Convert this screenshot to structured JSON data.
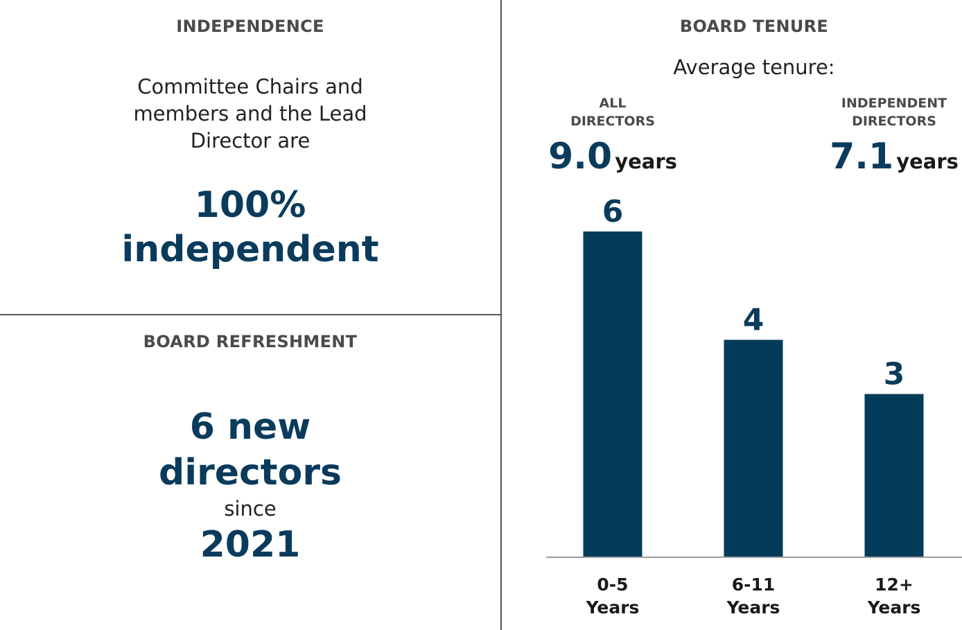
{
  "independence": {
    "heading": "INDEPENDENCE",
    "line1": "Committee Chairs and",
    "line2": "members and the Lead",
    "line3": "Director are",
    "stat_value": "100%",
    "stat_label": "independent"
  },
  "refreshment": {
    "heading": "BOARD REFRESHMENT",
    "line1": "6 new",
    "line2": "directors",
    "since": "since",
    "year": "2021"
  },
  "tenure": {
    "heading": "BOARD TENURE",
    "subheading": "Average tenure:",
    "all_label_line1": "ALL",
    "all_label_line2": "DIRECTORS",
    "all_value": "9.0",
    "all_unit": "years",
    "indep_label_line1": "INDEPENDENT",
    "indep_label_line2": "DIRECTORS",
    "indep_value": "7.1",
    "indep_unit": "years"
  },
  "colors": {
    "bar": "#033b5a",
    "navy_text": "#0a3b5c",
    "axis": "#9a9a9a"
  },
  "chart_data": {
    "type": "bar",
    "title": "BOARD TENURE",
    "categories": [
      [
        "0-5",
        "Years"
      ],
      [
        "6-11",
        "Years"
      ],
      [
        "12+",
        "Years"
      ]
    ],
    "values": [
      6,
      4,
      3
    ],
    "data_labels": [
      "6",
      "4",
      "3"
    ],
    "ylim": [
      0,
      6
    ],
    "xlabel": "",
    "ylabel": "",
    "grid": false
  }
}
